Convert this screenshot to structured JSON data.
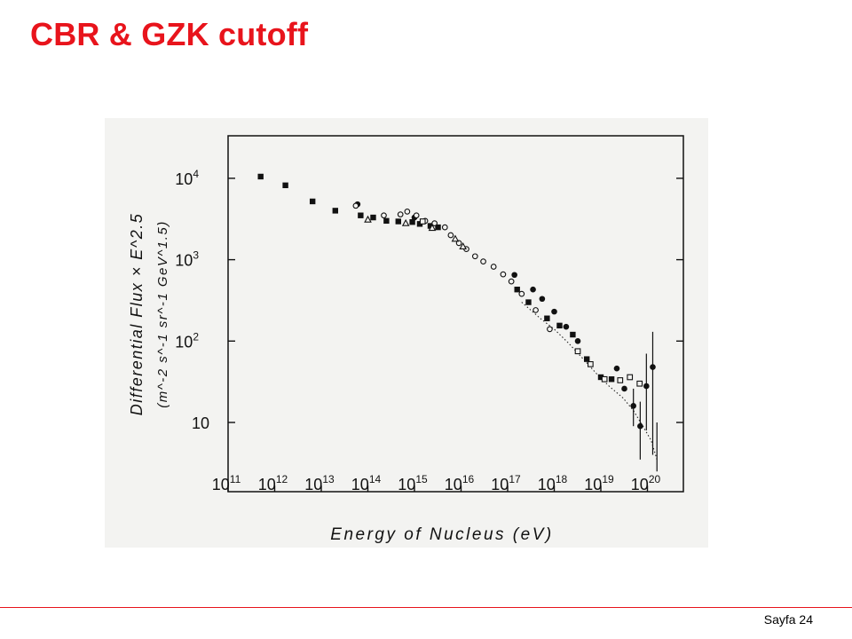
{
  "slide": {
    "title": "CBR & GZK cutoff",
    "page_label": "Sayfa 24",
    "accent_color": "#e8141c"
  },
  "chart_data": {
    "type": "scatter",
    "title": "",
    "xlabel": "Energy of Nucleus (eV)",
    "ylabel": "Differential Flux × E^2.5",
    "ylabel_units": "(m^-2 s^-1 sr^-1 GeV^1.5)",
    "x_scale": "log",
    "y_scale": "log",
    "xlim": [
      100000000000.0,
      1e+20
    ],
    "ylim": [
      2,
      30000.0
    ],
    "grid": false,
    "legend": "none",
    "x_ticks": [
      {
        "value": 100000000000.0,
        "base": "10",
        "exp": "11"
      },
      {
        "value": 1000000000000.0,
        "base": "10",
        "exp": "12"
      },
      {
        "value": 10000000000000.0,
        "base": "10",
        "exp": "13"
      },
      {
        "value": 100000000000000.0,
        "base": "10",
        "exp": "14"
      },
      {
        "value": 1000000000000000.0,
        "base": "10",
        "exp": "15"
      },
      {
        "value": 1e+16,
        "base": "10",
        "exp": "16"
      },
      {
        "value": 1e+17,
        "base": "10",
        "exp": "17"
      },
      {
        "value": 1e+18,
        "base": "10",
        "exp": "18"
      },
      {
        "value": 1e+19,
        "base": "10",
        "exp": "19"
      },
      {
        "value": 1e+20,
        "base": "10",
        "exp": "20"
      }
    ],
    "y_ticks": [
      {
        "value": 10,
        "base": "10",
        "exp": ""
      },
      {
        "value": 100,
        "base": "10",
        "exp": "2"
      },
      {
        "value": 1000,
        "base": "10",
        "exp": "3"
      },
      {
        "value": 10000,
        "base": "10",
        "exp": "4"
      }
    ],
    "series": [
      {
        "marker": "filled-square",
        "points": [
          [
            500000000000.0,
            10500
          ],
          [
            1700000000000.0,
            8200
          ],
          [
            6500000000000.0,
            5200
          ],
          [
            20000000000000.0,
            4000
          ],
          [
            70000000000000.0,
            3500
          ],
          [
            130000000000000.0,
            3300
          ],
          [
            250000000000000.0,
            3000
          ],
          [
            450000000000000.0,
            2950
          ],
          [
            900000000000000.0,
            2900
          ],
          [
            1300000000000000.0,
            2750
          ],
          [
            2200000000000000.0,
            2600
          ],
          [
            3200000000000000.0,
            2500
          ],
          [
            1.6e+17,
            430
          ],
          [
            2.8e+17,
            300
          ],
          [
            7e+17,
            190
          ],
          [
            1.3e+18,
            155
          ],
          [
            2.5e+18,
            120
          ],
          [
            5e+18,
            60
          ],
          [
            1e+19,
            36
          ],
          [
            1.7e+19,
            34
          ]
        ]
      },
      {
        "marker": "filled-circle",
        "points": [
          [
            60000000000000.0,
            4800
          ],
          [
            1000000000000000.0,
            3300
          ],
          [
            1.4e+17,
            650
          ],
          [
            3.5e+17,
            430
          ],
          [
            5.5e+17,
            330
          ],
          [
            1e+18,
            230
          ],
          [
            1.8e+18,
            150
          ],
          [
            3.2e+18,
            100
          ],
          [
            2.2e+19,
            46
          ],
          [
            3.2e+19,
            26
          ],
          [
            5e+19,
            16
          ],
          [
            7e+19,
            9
          ],
          [
            9.5e+19,
            28
          ],
          [
            1.3e+20,
            48
          ]
        ]
      },
      {
        "marker": "open-circle",
        "points": [
          [
            55000000000000.0,
            4600
          ],
          [
            220000000000000.0,
            3500
          ],
          [
            500000000000000.0,
            3600
          ],
          [
            700000000000000.0,
            3900
          ],
          [
            1100000000000000.0,
            3500
          ],
          [
            1700000000000000.0,
            3000
          ],
          [
            2700000000000000.0,
            2800
          ],
          [
            4500000000000000.0,
            2500
          ],
          [
            6000000000000000.0,
            2000
          ],
          [
            9000000000000000.0,
            1600
          ],
          [
            1.3e+16,
            1350
          ],
          [
            2e+16,
            1100
          ],
          [
            3e+16,
            950
          ],
          [
            5e+16,
            820
          ],
          [
            8e+16,
            660
          ],
          [
            1.2e+17,
            540
          ],
          [
            2e+17,
            380
          ],
          [
            4e+17,
            240
          ],
          [
            8e+17,
            140
          ]
        ]
      },
      {
        "marker": "open-triangle",
        "points": [
          [
            100000000000000.0,
            3100
          ],
          [
            650000000000000.0,
            2800
          ],
          [
            2400000000000000.0,
            2450
          ],
          [
            7500000000000000.0,
            1800
          ],
          [
            1.1e+16,
            1450
          ]
        ]
      },
      {
        "marker": "open-square",
        "points": [
          [
            1500000000000000.0,
            2950
          ],
          [
            3.2e+18,
            75
          ],
          [
            6e+18,
            52
          ],
          [
            1.2e+19,
            34
          ],
          [
            2.6e+19,
            33
          ],
          [
            4.2e+19,
            36
          ],
          [
            6.8e+19,
            30
          ]
        ]
      },
      {
        "marker": "dotted-line",
        "points": [
          [
            2e+17,
            300
          ],
          [
            5e+17,
            190
          ],
          [
            1e+18,
            140
          ],
          [
            2e+18,
            95
          ],
          [
            4e+18,
            62
          ],
          [
            8e+18,
            40
          ],
          [
            1.5e+19,
            28
          ],
          [
            3e+19,
            20
          ],
          [
            5e+19,
            14
          ],
          [
            8e+19,
            9
          ],
          [
            1.2e+20,
            6
          ],
          [
            1.6e+20,
            3.5
          ]
        ]
      }
    ],
    "error_bars": [
      {
        "x": 5e+19,
        "low": 9,
        "high": 26
      },
      {
        "x": 7e+19,
        "low": 3.5,
        "high": 18
      },
      {
        "x": 9.5e+19,
        "low": 8,
        "high": 70
      },
      {
        "x": 1.3e+20,
        "low": 4,
        "high": 130
      },
      {
        "x": 1.6e+20,
        "low": 2.5,
        "high": 10
      }
    ]
  }
}
